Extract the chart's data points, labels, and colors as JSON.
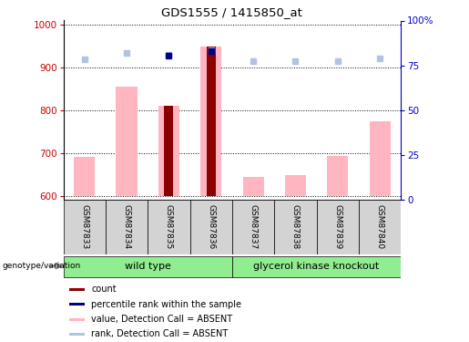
{
  "title": "GDS1555 / 1415850_at",
  "samples": [
    "GSM87833",
    "GSM87834",
    "GSM87835",
    "GSM87836",
    "GSM87837",
    "GSM87838",
    "GSM87839",
    "GSM87840"
  ],
  "ylim_left": [
    590,
    1010
  ],
  "ylim_right": [
    0,
    100
  ],
  "yticks_left": [
    600,
    700,
    800,
    900,
    1000
  ],
  "yticks_right": [
    0,
    25,
    50,
    75,
    100
  ],
  "ytick_labels_right": [
    "0",
    "25",
    "50",
    "75",
    "100%"
  ],
  "pink_bar_tops": [
    690,
    855,
    810,
    950,
    645,
    648,
    693,
    775
  ],
  "pink_bar_base": 600,
  "red_bar_tops": [
    600,
    600,
    810,
    950,
    600,
    600,
    600,
    600
  ],
  "red_bar_base": 600,
  "dark_blue_indices": [
    2,
    3
  ],
  "blue_square_y": [
    918,
    932,
    928,
    938,
    913,
    913,
    913,
    920
  ],
  "light_blue_square_y": [
    920,
    935,
    930,
    940,
    915,
    914,
    914,
    921
  ],
  "group1_label": "wild type",
  "group2_label": "glycerol kinase knockout",
  "group1_indices": [
    0,
    1,
    2,
    3
  ],
  "group2_indices": [
    4,
    5,
    6,
    7
  ],
  "genotype_label": "genotype/variation",
  "legend_labels": [
    "count",
    "percentile rank within the sample",
    "value, Detection Call = ABSENT",
    "rank, Detection Call = ABSENT"
  ],
  "pink_color": "#FFB6C1",
  "red_color": "#8B0000",
  "blue_color": "#00008B",
  "light_blue_color": "#B0C4DE",
  "group_bg": "#90EE90",
  "ylabel_left_color": "#CC0000",
  "ylabel_right_color": "#0000CC",
  "sample_box_color": "#D3D3D3"
}
